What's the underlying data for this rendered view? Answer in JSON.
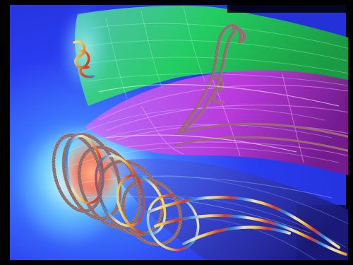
{
  "image": {
    "kind": "scientific-visualization",
    "colors": {
      "frame": "#000000",
      "background_blue": "#2a3cf0",
      "core_glow": "#ff8a6a",
      "halo_cyan": "#7fe8ff",
      "upper_sheet": "#22d45a",
      "middle_sheet": "#c43ad8",
      "lower_sheet": "#3a4ad0",
      "ribbon_colormap": [
        "#1a2a9a",
        "#2a8ae0",
        "#e8e0c0",
        "#f0c020",
        "#e03a1a",
        "#8a1010"
      ]
    }
  }
}
